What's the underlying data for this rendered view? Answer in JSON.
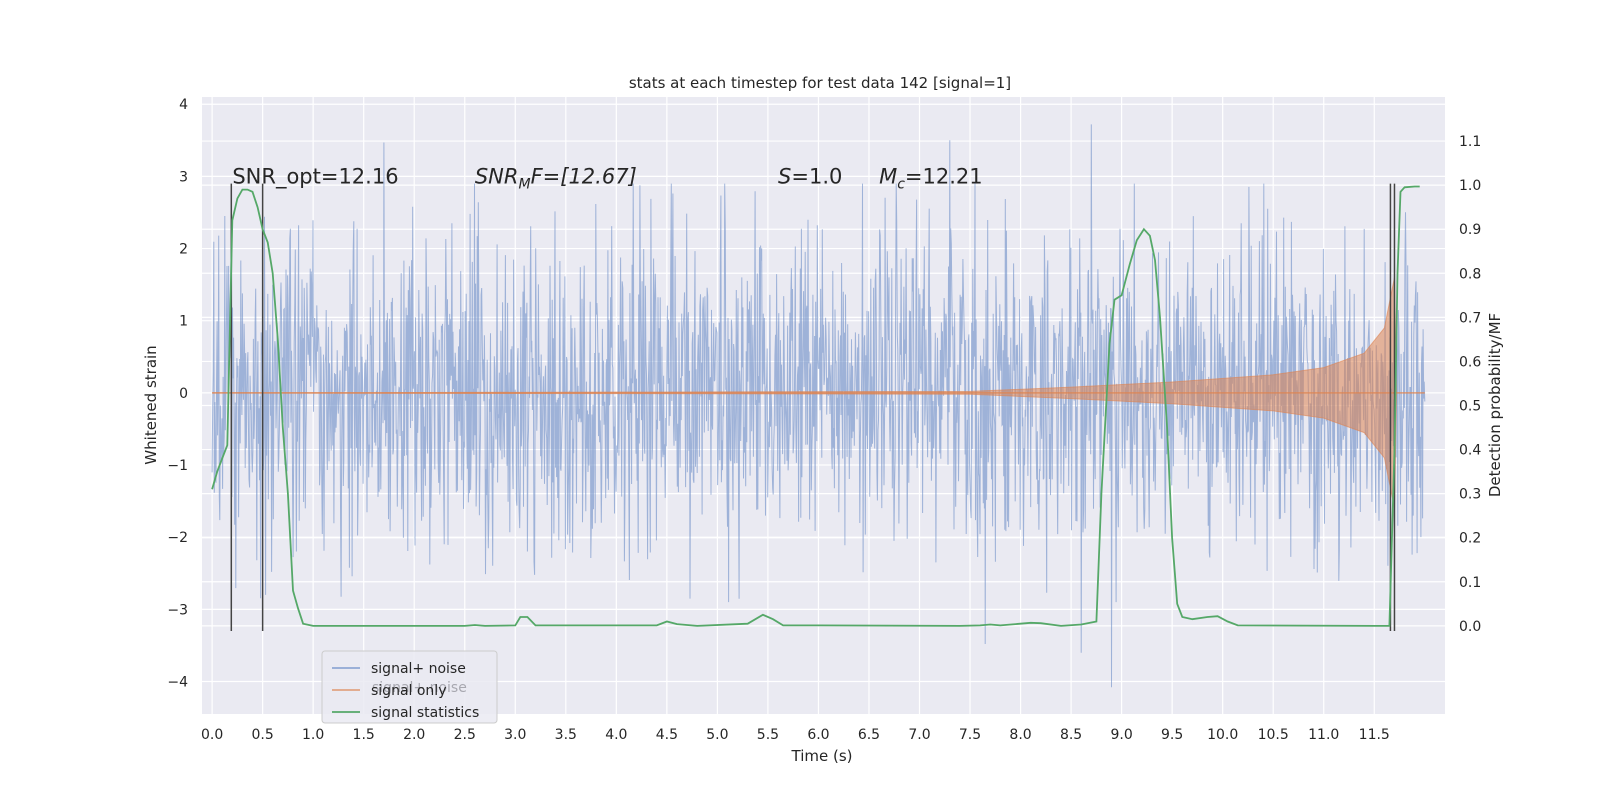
{
  "chart_data": {
    "type": "line",
    "title": "stats at each timestep for test data 142 [signal=1]",
    "xlabel": "Time (s)",
    "ylabel_left": "Whitened strain",
    "ylabel_right": "Detection probability/MF",
    "xlim": [
      -0.1,
      12.2
    ],
    "ylim_left": [
      -4.45,
      4.1
    ],
    "ylim_right": [
      -0.2,
      1.2
    ],
    "grid": true,
    "legend_placement": "lower-left",
    "x_ticks": [
      0.0,
      0.5,
      1.0,
      1.5,
      2.0,
      2.5,
      3.0,
      3.5,
      4.0,
      4.5,
      5.0,
      5.5,
      6.0,
      6.5,
      7.0,
      7.5,
      8.0,
      8.5,
      9.0,
      9.5,
      10.0,
      10.5,
      11.0,
      11.5
    ],
    "x_tick_labels": [
      "0.0",
      "0.5",
      "1.0",
      "1.5",
      "2.0",
      "2.5",
      "3.0",
      "3.5",
      "4.0",
      "4.5",
      "5.0",
      "5.5",
      "6.0",
      "6.5",
      "7.0",
      "7.5",
      "8.0",
      "8.5",
      "9.0",
      "9.5",
      "10.0",
      "10.5",
      "11.0",
      "11.5"
    ],
    "y_left_ticks": [
      4,
      3,
      2,
      1,
      0,
      -1,
      -2,
      -3,
      -4
    ],
    "y_left_tick_labels": [
      "4",
      "3",
      "2",
      "1",
      "0",
      "−1",
      "−2",
      "−3",
      "−4"
    ],
    "y_right_ticks": [
      1.1,
      1.0,
      0.9,
      0.8,
      0.7,
      0.6,
      0.5,
      0.4,
      0.3,
      0.2,
      0.1,
      0.0
    ],
    "y_right_tick_labels": [
      "1.1",
      "1.0",
      "0.9",
      "0.8",
      "0.7",
      "0.6",
      "0.5",
      "0.4",
      "0.3",
      "0.2",
      "0.1",
      "0.0"
    ],
    "colors": {
      "noise": "#6a8cc7",
      "signal": "#dd8452",
      "stats": "#55a868",
      "plot_bg": "#eaeaf2",
      "grid": "#ffffff",
      "vline": "#444444"
    },
    "series": [
      {
        "name": "signal+ noise",
        "axis": "left",
        "t_range": [
          0.0,
          12.0
        ],
        "amplitude_envelope": [
          -2.4,
          2.4
        ],
        "outlier_peaks": [
          [
            1.7,
            3.47
          ],
          [
            8.7,
            3.72
          ],
          [
            8.9,
            -4.08
          ],
          [
            7.3,
            3.5
          ],
          [
            7.65,
            -3.48
          ],
          [
            8.6,
            -3.6
          ]
        ]
      },
      {
        "name": "signal only",
        "axis": "left",
        "t_range": [
          0.0,
          12.0
        ],
        "envelope": [
          [
            0.0,
            0.0
          ],
          [
            7.5,
            0.02
          ],
          [
            8.5,
            0.08
          ],
          [
            9.5,
            0.15
          ],
          [
            10.5,
            0.25
          ],
          [
            11.0,
            0.35
          ],
          [
            11.4,
            0.55
          ],
          [
            11.6,
            0.9
          ],
          [
            11.7,
            1.6
          ],
          [
            11.72,
            0.0
          ]
        ]
      },
      {
        "name": "signal statistics",
        "axis": "right",
        "points": [
          [
            0.0,
            0.31
          ],
          [
            0.05,
            0.35
          ],
          [
            0.1,
            0.38
          ],
          [
            0.15,
            0.41
          ],
          [
            0.2,
            0.92
          ],
          [
            0.25,
            0.97
          ],
          [
            0.3,
            0.99
          ],
          [
            0.35,
            0.99
          ],
          [
            0.4,
            0.985
          ],
          [
            0.45,
            0.95
          ],
          [
            0.5,
            0.9
          ],
          [
            0.55,
            0.87
          ],
          [
            0.6,
            0.8
          ],
          [
            0.65,
            0.65
          ],
          [
            0.7,
            0.45
          ],
          [
            0.75,
            0.3
          ],
          [
            0.8,
            0.08
          ],
          [
            0.85,
            0.04
          ],
          [
            0.9,
            0.005
          ],
          [
            1.0,
            0.0
          ],
          [
            2.5,
            0.0
          ],
          [
            2.6,
            0.002
          ],
          [
            2.7,
            0.0
          ],
          [
            3.0,
            0.001
          ],
          [
            3.05,
            0.02
          ],
          [
            3.12,
            0.02
          ],
          [
            3.2,
            0.001
          ],
          [
            4.4,
            0.001
          ],
          [
            4.5,
            0.01
          ],
          [
            4.6,
            0.004
          ],
          [
            4.8,
            0.0
          ],
          [
            5.3,
            0.005
          ],
          [
            5.45,
            0.025
          ],
          [
            5.55,
            0.015
          ],
          [
            5.65,
            0.001
          ],
          [
            6.0,
            0.001
          ],
          [
            7.4,
            0.0
          ],
          [
            7.6,
            0.001
          ],
          [
            7.7,
            0.003
          ],
          [
            7.8,
            0.001
          ],
          [
            8.1,
            0.007
          ],
          [
            8.2,
            0.006
          ],
          [
            8.4,
            0.0
          ],
          [
            8.6,
            0.003
          ],
          [
            8.75,
            0.01
          ],
          [
            8.8,
            0.3
          ],
          [
            8.88,
            0.64
          ],
          [
            8.93,
            0.74
          ],
          [
            9.0,
            0.75
          ],
          [
            9.08,
            0.82
          ],
          [
            9.15,
            0.875
          ],
          [
            9.22,
            0.9
          ],
          [
            9.28,
            0.885
          ],
          [
            9.33,
            0.83
          ],
          [
            9.38,
            0.7
          ],
          [
            9.45,
            0.45
          ],
          [
            9.5,
            0.2
          ],
          [
            9.55,
            0.05
          ],
          [
            9.6,
            0.02
          ],
          [
            9.7,
            0.015
          ],
          [
            9.85,
            0.02
          ],
          [
            9.95,
            0.022
          ],
          [
            10.05,
            0.01
          ],
          [
            10.15,
            0.001
          ],
          [
            11.5,
            0.0
          ],
          [
            11.65,
            0.0
          ],
          [
            11.7,
            0.4
          ],
          [
            11.73,
            0.8
          ],
          [
            11.76,
            0.985
          ],
          [
            11.8,
            0.995
          ],
          [
            11.9,
            0.997
          ],
          [
            11.95,
            0.997
          ]
        ]
      }
    ],
    "vertical_lines_x": [
      0.19,
      0.5,
      11.66,
      11.7
    ],
    "annotations": [
      {
        "text": "SNR_opt=12.16",
        "x": 0.2,
        "y": 2.9,
        "type": "plain"
      },
      {
        "text_main": "SNR",
        "text_sub": "M",
        "text_tail": "F=[12.67]",
        "x": 2.6,
        "y": 2.9,
        "type": "math"
      },
      {
        "text_main": "S",
        "text_sub": "",
        "text_tail": "=1.0",
        "x": 5.6,
        "y": 2.9,
        "type": "math"
      },
      {
        "text_main": "M",
        "text_sub": "c",
        "text_tail": "=12.21",
        "x": 6.6,
        "y": 2.9,
        "type": "math"
      }
    ],
    "legend": {
      "placement": "lower-left",
      "entries": [
        "signal+ noise",
        "signal only",
        "signal statistics"
      ],
      "ghost_text": "signal+ noise"
    }
  }
}
